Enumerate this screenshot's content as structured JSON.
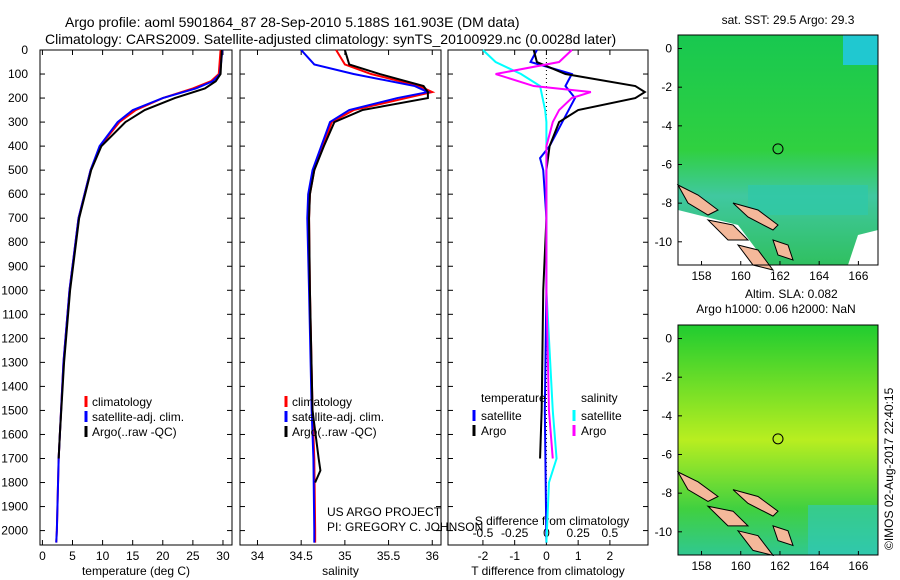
{
  "title_line1": "Argo profile: aoml 5901864_87 28-Sep-2010 5.188S 161.903E (DM data)",
  "title_line2": "Climatology: CARS2009. Satellite-adjusted climatology: synTS_20100929.nc (0.0028d later)",
  "credit": "©IMOS 02-Aug-2017 22:40:15",
  "project_line1": "US ARGO PROJECT",
  "project_line2": "PI: GREGORY C. JOHNSON",
  "colors": {
    "climatology": "#ff0000",
    "satellite": "#0000ff",
    "argo": "#000000",
    "sal_satellite": "#00ffff",
    "sal_argo": "#ff00ff",
    "land": "#f4b89a"
  },
  "chart_data": [
    {
      "type": "line",
      "name": "temperature",
      "xlabel": "temperature (deg C)",
      "ylabel": "",
      "xlim": [
        -0.4,
        31.5
      ],
      "ylim": [
        2060,
        0
      ],
      "xticks": [
        0,
        5,
        10,
        15,
        20,
        25,
        30
      ],
      "yticks": [
        0,
        100,
        200,
        300,
        400,
        500,
        600,
        700,
        800,
        900,
        1000,
        1100,
        1200,
        1300,
        1400,
        1500,
        1600,
        1700,
        1800,
        1900,
        2000
      ],
      "legend": [
        "climatology",
        "satellite-adj. clim.",
        "Argo(..raw -QC)"
      ],
      "series": [
        {
          "name": "climatology",
          "depth": [
            0,
            100,
            130,
            160,
            200,
            250,
            300,
            400,
            500,
            700,
            1000,
            1300,
            1600,
            1700,
            2000,
            2050
          ],
          "values": [
            29.6,
            29.3,
            28,
            25,
            20,
            15.5,
            12.8,
            9.6,
            8,
            6,
            4.5,
            3.5,
            2.9,
            2.7,
            2.4,
            2.3
          ]
        },
        {
          "name": "satellite",
          "depth": [
            0,
            100,
            130,
            160,
            200,
            250,
            300,
            400,
            500,
            700,
            1000,
            1300,
            1600,
            1700,
            2000,
            2050
          ],
          "values": [
            29.9,
            29.5,
            28.3,
            25.5,
            20,
            15,
            12.5,
            9.5,
            8,
            6,
            4.5,
            3.5,
            2.9,
            2.7,
            2.4,
            2.3
          ]
        },
        {
          "name": "argo",
          "depth": [
            0,
            100,
            130,
            160,
            200,
            250,
            300,
            400,
            500,
            700,
            1000,
            1300,
            1600,
            1700
          ],
          "values": [
            29.8,
            29.6,
            28.8,
            27,
            22,
            17,
            13.8,
            9.8,
            8.1,
            6.1,
            4.6,
            3.6,
            2.9,
            2.7
          ]
        }
      ]
    },
    {
      "type": "line",
      "name": "salinity",
      "xlabel": "salinity",
      "ylabel": "",
      "xlim": [
        33.8,
        36.1
      ],
      "ylim": [
        2060,
        0
      ],
      "xticks": [
        34,
        34.5,
        35,
        35.5,
        36
      ],
      "legend": [
        "climatology",
        "satellite-adj. clim.",
        "Argo(..raw -QC)"
      ],
      "series": [
        {
          "name": "climatology",
          "depth": [
            0,
            60,
            100,
            150,
            175,
            200,
            250,
            300,
            400,
            500,
            600,
            700,
            1000,
            1500,
            1700,
            2000,
            2050
          ],
          "values": [
            34.9,
            35.0,
            35.3,
            35.85,
            36.0,
            35.7,
            35.1,
            34.85,
            34.75,
            34.65,
            34.6,
            34.59,
            34.6,
            34.63,
            34.65,
            34.66,
            34.66
          ]
        },
        {
          "name": "satellite",
          "depth": [
            0,
            60,
            100,
            150,
            175,
            200,
            250,
            300,
            400,
            500,
            600,
            700,
            1000,
            1500,
            1700,
            2000,
            2050
          ],
          "values": [
            34.5,
            34.65,
            35.1,
            35.8,
            35.95,
            35.6,
            35.05,
            34.83,
            34.73,
            34.63,
            34.58,
            34.57,
            34.59,
            34.62,
            34.64,
            34.65,
            34.65
          ]
        },
        {
          "name": "argo",
          "depth": [
            0,
            60,
            100,
            150,
            175,
            200,
            250,
            300,
            400,
            500,
            600,
            700,
            1000,
            1500,
            1700,
            1750,
            1800
          ],
          "values": [
            35.0,
            35.05,
            35.4,
            35.9,
            35.95,
            35.95,
            35.2,
            34.88,
            34.76,
            34.65,
            34.6,
            34.59,
            34.6,
            34.63,
            34.7,
            34.72,
            34.66
          ]
        }
      ]
    },
    {
      "type": "line",
      "name": "difference",
      "xlabel": "T difference from climatology",
      "x2label": "S difference from climatology",
      "xlim": [
        -3.1,
        3.2
      ],
      "ylim": [
        2060,
        0
      ],
      "xticks": [
        -2,
        -1,
        0,
        1,
        2
      ],
      "x2ticks": [
        "-0.5",
        "-0.25",
        "0",
        "0.25",
        "0.5"
      ],
      "legend_temperature": "temperature",
      "legend_salinity": "salinity",
      "legend_items": [
        "satellite",
        "Argo",
        "satellite",
        "Argo"
      ],
      "series": [
        {
          "name": "T satellite",
          "depth": [
            0,
            50,
            100,
            150,
            200,
            250,
            300,
            400,
            450,
            500,
            700,
            1000,
            1500,
            2050
          ],
          "values": [
            -0.3,
            -0.5,
            0.8,
            0.6,
            0.9,
            0.7,
            0.5,
            0.1,
            -0.2,
            -0.1,
            0,
            0,
            -0.05,
            0
          ]
        },
        {
          "name": "T argo",
          "depth": [
            0,
            50,
            100,
            150,
            175,
            200,
            250,
            300,
            400,
            500,
            700,
            1000,
            1500,
            1700
          ],
          "values": [
            -0.4,
            -0.3,
            0.6,
            2.8,
            3.1,
            2.8,
            1.0,
            0.4,
            0.1,
            0,
            0,
            -0.1,
            -0.15,
            -0.2
          ]
        },
        {
          "name": "S satellite",
          "depth": [
            0,
            50,
            100,
            150,
            200,
            250,
            300,
            400,
            500,
            700,
            1000,
            1500,
            1700,
            1800,
            2050
          ],
          "values": [
            -0.5,
            -0.4,
            -0.2,
            -0.05,
            -0.03,
            -0.01,
            0,
            0,
            0,
            0,
            0,
            0.05,
            0.08,
            0.02,
            0
          ]
        },
        {
          "name": "S argo",
          "depth": [
            0,
            50,
            100,
            150,
            175,
            200,
            250,
            300,
            400,
            500,
            700,
            1000,
            1500,
            1700
          ],
          "values": [
            0.2,
            0.1,
            -0.4,
            -0.1,
            0.35,
            0.2,
            0.1,
            0.05,
            0,
            0,
            0,
            0,
            0.02,
            0.05
          ]
        }
      ]
    },
    {
      "type": "heatmap",
      "name": "sst-map",
      "title": "sat. SST: 29.5 Argo: 29.3",
      "xticks": [
        158,
        160,
        162,
        164,
        166
      ],
      "yticks": [
        0,
        -2,
        -4,
        -6,
        -8,
        -10
      ],
      "xlim": [
        156.8,
        167
      ],
      "ylim": [
        -11.2,
        0.7
      ],
      "marker": [
        161.9,
        -5.19
      ]
    },
    {
      "type": "heatmap",
      "name": "sla-map",
      "title": "Altim. SLA: 0.082",
      "subtitle": "Argo h1000: 0.06 h2000: NaN",
      "xticks": [
        158,
        160,
        162,
        164,
        166
      ],
      "yticks": [
        0,
        -2,
        -4,
        -6,
        -8,
        -10
      ],
      "xlim": [
        156.8,
        167
      ],
      "ylim": [
        -11.2,
        0.7
      ],
      "marker": [
        161.9,
        -5.19
      ]
    }
  ]
}
